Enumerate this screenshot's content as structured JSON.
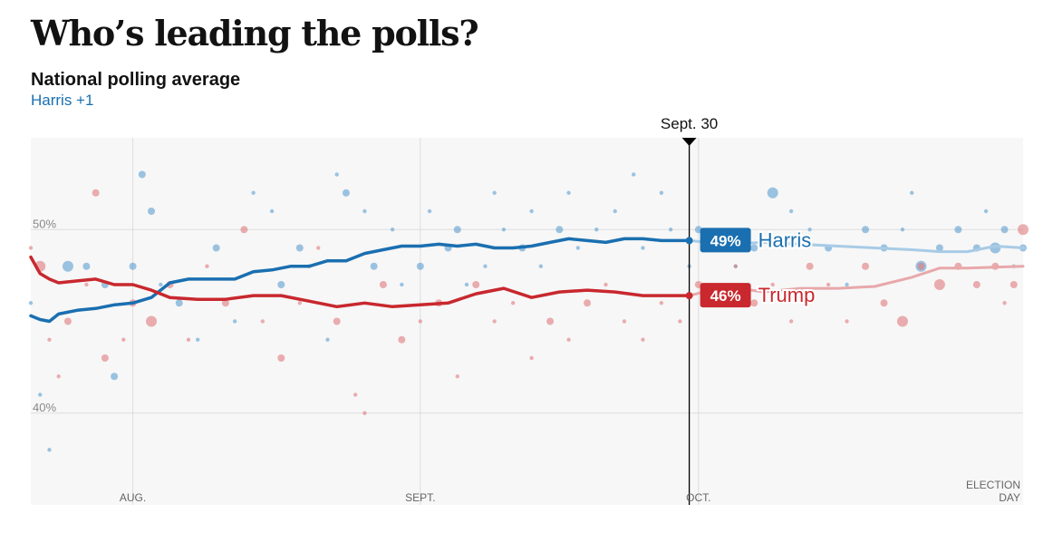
{
  "header": {
    "title": "Who’s leading the polls?",
    "subtitle": "National polling average",
    "lead": "Harris +1"
  },
  "colors": {
    "harris": "#1a6fb0",
    "trump": "#c8282e",
    "harris_poll": "#5c9fd1",
    "trump_poll": "#e07a7d",
    "background": "#f7f7f7",
    "grid": "#dddddd"
  },
  "chart_data": {
    "type": "line",
    "title": "Who’s leading the polls?",
    "subtitle": "National polling average",
    "leader": "Harris +1",
    "x_axis": {
      "type": "date",
      "range": [
        "2024-07-21",
        "2024-11-05"
      ],
      "ticks": [
        {
          "date": "2024-08-01",
          "label": "AUG."
        },
        {
          "date": "2024-09-01",
          "label": "SEPT."
        },
        {
          "date": "2024-10-01",
          "label": "OCT."
        },
        {
          "date": "2024-11-05",
          "label": "ELECTION",
          "label2": "DAY"
        }
      ]
    },
    "y_axis": {
      "range": [
        35,
        55
      ],
      "ticks": [
        {
          "value": 50,
          "label": "50%"
        },
        {
          "value": 40,
          "label": "40%"
        }
      ]
    },
    "grid": true,
    "marker": {
      "date": "2024-09-30",
      "label": "Sept. 30"
    },
    "series": [
      {
        "name": "Harris",
        "label": "49%",
        "points": [
          [
            "2024-07-21",
            45.3
          ],
          [
            "2024-07-22",
            45.1
          ],
          [
            "2024-07-23",
            45.0
          ],
          [
            "2024-07-24",
            45.4
          ],
          [
            "2024-07-26",
            45.6
          ],
          [
            "2024-07-28",
            45.7
          ],
          [
            "2024-07-30",
            45.9
          ],
          [
            "2024-08-01",
            46.0
          ],
          [
            "2024-08-03",
            46.3
          ],
          [
            "2024-08-05",
            47.1
          ],
          [
            "2024-08-07",
            47.3
          ],
          [
            "2024-08-10",
            47.3
          ],
          [
            "2024-08-12",
            47.3
          ],
          [
            "2024-08-14",
            47.7
          ],
          [
            "2024-08-16",
            47.8
          ],
          [
            "2024-08-18",
            48.0
          ],
          [
            "2024-08-20",
            48.0
          ],
          [
            "2024-08-22",
            48.3
          ],
          [
            "2024-08-24",
            48.3
          ],
          [
            "2024-08-26",
            48.7
          ],
          [
            "2024-08-28",
            48.9
          ],
          [
            "2024-08-30",
            49.1
          ],
          [
            "2024-09-01",
            49.1
          ],
          [
            "2024-09-03",
            49.2
          ],
          [
            "2024-09-05",
            49.1
          ],
          [
            "2024-09-07",
            49.2
          ],
          [
            "2024-09-09",
            49.0
          ],
          [
            "2024-09-11",
            49.0
          ],
          [
            "2024-09-13",
            49.1
          ],
          [
            "2024-09-15",
            49.3
          ],
          [
            "2024-09-17",
            49.5
          ],
          [
            "2024-09-19",
            49.4
          ],
          [
            "2024-09-21",
            49.3
          ],
          [
            "2024-09-23",
            49.5
          ],
          [
            "2024-09-25",
            49.5
          ],
          [
            "2024-09-27",
            49.4
          ],
          [
            "2024-09-30",
            49.4
          ]
        ],
        "projection": [
          [
            "2024-09-30",
            49.4
          ],
          [
            "2024-10-04",
            49.2
          ],
          [
            "2024-10-08",
            49.3
          ],
          [
            "2024-10-12",
            49.2
          ],
          [
            "2024-10-16",
            49.1
          ],
          [
            "2024-10-20",
            49.0
          ],
          [
            "2024-10-24",
            48.9
          ],
          [
            "2024-10-27",
            48.8
          ],
          [
            "2024-10-30",
            48.8
          ],
          [
            "2024-11-02",
            49.1
          ],
          [
            "2024-11-05",
            49.0
          ]
        ]
      },
      {
        "name": "Trump",
        "label": "46%",
        "points": [
          [
            "2024-07-21",
            48.5
          ],
          [
            "2024-07-22",
            47.6
          ],
          [
            "2024-07-23",
            47.3
          ],
          [
            "2024-07-24",
            47.1
          ],
          [
            "2024-07-26",
            47.2
          ],
          [
            "2024-07-28",
            47.3
          ],
          [
            "2024-07-30",
            47.0
          ],
          [
            "2024-08-01",
            47.0
          ],
          [
            "2024-08-03",
            46.7
          ],
          [
            "2024-08-05",
            46.3
          ],
          [
            "2024-08-08",
            46.2
          ],
          [
            "2024-08-11",
            46.2
          ],
          [
            "2024-08-14",
            46.4
          ],
          [
            "2024-08-17",
            46.4
          ],
          [
            "2024-08-20",
            46.1
          ],
          [
            "2024-08-23",
            45.8
          ],
          [
            "2024-08-26",
            46.0
          ],
          [
            "2024-08-29",
            45.8
          ],
          [
            "2024-09-01",
            45.9
          ],
          [
            "2024-09-04",
            46.0
          ],
          [
            "2024-09-07",
            46.5
          ],
          [
            "2024-09-10",
            46.8
          ],
          [
            "2024-09-13",
            46.3
          ],
          [
            "2024-09-16",
            46.6
          ],
          [
            "2024-09-19",
            46.7
          ],
          [
            "2024-09-22",
            46.6
          ],
          [
            "2024-09-25",
            46.4
          ],
          [
            "2024-09-30",
            46.4
          ]
        ],
        "projection": [
          [
            "2024-09-30",
            46.4
          ],
          [
            "2024-10-04",
            46.9
          ],
          [
            "2024-10-08",
            46.6
          ],
          [
            "2024-10-12",
            46.8
          ],
          [
            "2024-10-16",
            46.8
          ],
          [
            "2024-10-20",
            46.9
          ],
          [
            "2024-10-24",
            47.4
          ],
          [
            "2024-10-27",
            47.9
          ],
          [
            "2024-10-30",
            47.9
          ],
          [
            "2024-11-05",
            48.0
          ]
        ]
      }
    ],
    "polls": {
      "Harris": [
        [
          "2024-07-21",
          46,
          1
        ],
        [
          "2024-07-22",
          41,
          1
        ],
        [
          "2024-07-23",
          38,
          1
        ],
        [
          "2024-07-25",
          48,
          3
        ],
        [
          "2024-07-27",
          48,
          2
        ],
        [
          "2024-07-29",
          47,
          2
        ],
        [
          "2024-07-30",
          42,
          2
        ],
        [
          "2024-08-01",
          48,
          2
        ],
        [
          "2024-08-02",
          53,
          2
        ],
        [
          "2024-08-03",
          51,
          2
        ],
        [
          "2024-08-04",
          47,
          1
        ],
        [
          "2024-08-06",
          46,
          2
        ],
        [
          "2024-08-08",
          44,
          1
        ],
        [
          "2024-08-10",
          49,
          2
        ],
        [
          "2024-08-12",
          45,
          1
        ],
        [
          "2024-08-14",
          52,
          1
        ],
        [
          "2024-08-16",
          51,
          1
        ],
        [
          "2024-08-17",
          47,
          2
        ],
        [
          "2024-08-19",
          49,
          2
        ],
        [
          "2024-08-20",
          48,
          1
        ],
        [
          "2024-08-22",
          44,
          1
        ],
        [
          "2024-08-23",
          53,
          1
        ],
        [
          "2024-08-24",
          52,
          2
        ],
        [
          "2024-08-26",
          51,
          1
        ],
        [
          "2024-08-27",
          48,
          2
        ],
        [
          "2024-08-29",
          50,
          1
        ],
        [
          "2024-08-30",
          47,
          1
        ],
        [
          "2024-09-01",
          48,
          2
        ],
        [
          "2024-09-02",
          51,
          1
        ],
        [
          "2024-09-04",
          49,
          2
        ],
        [
          "2024-09-05",
          50,
          2
        ],
        [
          "2024-09-06",
          47,
          1
        ],
        [
          "2024-09-08",
          48,
          1
        ],
        [
          "2024-09-09",
          52,
          1
        ],
        [
          "2024-09-10",
          50,
          1
        ],
        [
          "2024-09-12",
          49,
          2
        ],
        [
          "2024-09-13",
          51,
          1
        ],
        [
          "2024-09-14",
          48,
          1
        ],
        [
          "2024-09-16",
          50,
          2
        ],
        [
          "2024-09-17",
          52,
          1
        ],
        [
          "2024-09-18",
          49,
          1
        ],
        [
          "2024-09-20",
          50,
          1
        ],
        [
          "2024-09-22",
          51,
          1
        ],
        [
          "2024-09-24",
          53,
          1
        ],
        [
          "2024-09-25",
          49,
          1
        ],
        [
          "2024-09-27",
          52,
          1
        ],
        [
          "2024-09-28",
          50,
          1
        ],
        [
          "2024-09-30",
          48,
          1
        ],
        [
          "2024-10-01",
          50,
          2
        ],
        [
          "2024-10-03",
          49,
          2
        ],
        [
          "2024-10-05",
          48,
          1
        ],
        [
          "2024-10-07",
          49,
          2
        ],
        [
          "2024-10-09",
          52,
          3
        ],
        [
          "2024-10-11",
          51,
          1
        ],
        [
          "2024-10-13",
          50,
          1
        ],
        [
          "2024-10-15",
          49,
          2
        ],
        [
          "2024-10-17",
          47,
          1
        ],
        [
          "2024-10-19",
          50,
          2
        ],
        [
          "2024-10-21",
          49,
          2
        ],
        [
          "2024-10-23",
          50,
          1
        ],
        [
          "2024-10-24",
          52,
          1
        ],
        [
          "2024-10-25",
          48,
          3
        ],
        [
          "2024-10-27",
          49,
          2
        ],
        [
          "2024-10-29",
          50,
          2
        ],
        [
          "2024-10-31",
          49,
          2
        ],
        [
          "2024-11-01",
          51,
          1
        ],
        [
          "2024-11-02",
          49,
          3
        ],
        [
          "2024-11-03",
          50,
          2
        ],
        [
          "2024-11-04",
          48,
          1
        ],
        [
          "2024-11-05",
          49,
          2
        ]
      ],
      "Trump": [
        [
          "2024-07-21",
          49,
          1
        ],
        [
          "2024-07-22",
          48,
          3
        ],
        [
          "2024-07-23",
          44,
          1
        ],
        [
          "2024-07-24",
          42,
          1
        ],
        [
          "2024-07-25",
          45,
          2
        ],
        [
          "2024-07-27",
          47,
          1
        ],
        [
          "2024-07-28",
          52,
          2
        ],
        [
          "2024-07-29",
          43,
          2
        ],
        [
          "2024-07-31",
          44,
          1
        ],
        [
          "2024-08-01",
          46,
          2
        ],
        [
          "2024-08-03",
          45,
          3
        ],
        [
          "2024-08-05",
          47,
          2
        ],
        [
          "2024-08-07",
          44,
          1
        ],
        [
          "2024-08-09",
          48,
          1
        ],
        [
          "2024-08-11",
          46,
          2
        ],
        [
          "2024-08-13",
          50,
          2
        ],
        [
          "2024-08-15",
          45,
          1
        ],
        [
          "2024-08-17",
          43,
          2
        ],
        [
          "2024-08-19",
          46,
          1
        ],
        [
          "2024-08-21",
          49,
          1
        ],
        [
          "2024-08-23",
          45,
          2
        ],
        [
          "2024-08-25",
          41,
          1
        ],
        [
          "2024-08-26",
          40,
          1
        ],
        [
          "2024-08-28",
          47,
          2
        ],
        [
          "2024-08-30",
          44,
          2
        ],
        [
          "2024-09-01",
          45,
          1
        ],
        [
          "2024-09-03",
          46,
          2
        ],
        [
          "2024-09-05",
          42,
          1
        ],
        [
          "2024-09-07",
          47,
          2
        ],
        [
          "2024-09-09",
          45,
          1
        ],
        [
          "2024-09-11",
          46,
          1
        ],
        [
          "2024-09-13",
          43,
          1
        ],
        [
          "2024-09-15",
          45,
          2
        ],
        [
          "2024-09-17",
          44,
          1
        ],
        [
          "2024-09-19",
          46,
          2
        ],
        [
          "2024-09-21",
          47,
          1
        ],
        [
          "2024-09-23",
          45,
          1
        ],
        [
          "2024-09-25",
          44,
          1
        ],
        [
          "2024-09-27",
          46,
          1
        ],
        [
          "2024-09-29",
          45,
          1
        ],
        [
          "2024-10-01",
          47,
          2
        ],
        [
          "2024-10-03",
          46,
          2
        ],
        [
          "2024-10-05",
          48,
          1
        ],
        [
          "2024-10-07",
          46,
          2
        ],
        [
          "2024-10-09",
          47,
          1
        ],
        [
          "2024-10-11",
          45,
          1
        ],
        [
          "2024-10-13",
          48,
          2
        ],
        [
          "2024-10-15",
          47,
          1
        ],
        [
          "2024-10-17",
          45,
          1
        ],
        [
          "2024-10-19",
          48,
          2
        ],
        [
          "2024-10-21",
          46,
          2
        ],
        [
          "2024-10-23",
          45,
          3
        ],
        [
          "2024-10-25",
          48,
          2
        ],
        [
          "2024-10-27",
          47,
          3
        ],
        [
          "2024-10-29",
          48,
          2
        ],
        [
          "2024-10-31",
          47,
          2
        ],
        [
          "2024-11-02",
          48,
          2
        ],
        [
          "2024-11-03",
          46,
          1
        ],
        [
          "2024-11-04",
          47,
          2
        ],
        [
          "2024-11-05",
          50,
          3
        ]
      ]
    }
  }
}
